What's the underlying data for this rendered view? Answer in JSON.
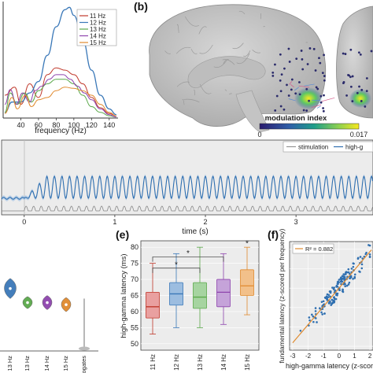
{
  "panels": {
    "b": "(b)",
    "e": "(e)",
    "f": "(f)"
  },
  "colors": {
    "c11": "#c0392b",
    "c12": "#3a78b8",
    "c13": "#5aa84a",
    "c14": "#8e44ad",
    "c15": "#e08a2e",
    "surr": "#888888",
    "stim": "#888888",
    "gamma": "#2f6fb0"
  },
  "chart_data": [
    {
      "type": "line",
      "xlabel": "frequency (Hz)",
      "ylabel": "",
      "xlim": [
        20,
        150
      ],
      "ylim": [
        0,
        1
      ],
      "xticks": [
        40,
        60,
        80,
        100,
        120,
        140
      ],
      "legend_position": "top-right",
      "series": [
        {
          "name": "11 Hz",
          "x": [
            22,
            33,
            40,
            50,
            60,
            70,
            80,
            90,
            100,
            110,
            120,
            130,
            140,
            148
          ],
          "y": [
            0.2,
            0.27,
            0.12,
            0.3,
            0.18,
            0.38,
            0.44,
            0.42,
            0.38,
            0.3,
            0.18,
            0.09,
            0.04,
            0.02
          ]
        },
        {
          "name": "12 Hz",
          "x": [
            22,
            30,
            40,
            50,
            60,
            70,
            80,
            90,
            95,
            100,
            110,
            120,
            130,
            140,
            148
          ],
          "y": [
            0.05,
            0.14,
            0.14,
            0.22,
            0.32,
            0.55,
            0.8,
            0.95,
            0.97,
            0.9,
            0.68,
            0.42,
            0.2,
            0.08,
            0.03
          ]
        },
        {
          "name": "13 Hz",
          "x": [
            22,
            28,
            36,
            44,
            52,
            60,
            70,
            80,
            90,
            100,
            110,
            120,
            130,
            140,
            148
          ],
          "y": [
            0.05,
            0.22,
            0.12,
            0.22,
            0.14,
            0.24,
            0.3,
            0.34,
            0.34,
            0.3,
            0.2,
            0.1,
            0.05,
            0.02,
            0.01
          ]
        },
        {
          "name": "14 Hz",
          "x": [
            22,
            28,
            35,
            42,
            50,
            56,
            64,
            72,
            80,
            88,
            96,
            104,
            112,
            120,
            130,
            140,
            148
          ],
          "y": [
            0.12,
            0.25,
            0.12,
            0.22,
            0.14,
            0.24,
            0.28,
            0.34,
            0.38,
            0.38,
            0.34,
            0.28,
            0.22,
            0.16,
            0.08,
            0.03,
            0.01
          ]
        },
        {
          "name": "15 Hz",
          "x": [
            22,
            30,
            36,
            45,
            52,
            60,
            70,
            80,
            90,
            100,
            110,
            120,
            130,
            140,
            148
          ],
          "y": [
            0.04,
            0.18,
            0.08,
            0.2,
            0.1,
            0.16,
            0.18,
            0.24,
            0.27,
            0.26,
            0.24,
            0.2,
            0.12,
            0.05,
            0.02
          ]
        }
      ]
    },
    {
      "type": "line",
      "xlabel": "time (s)",
      "xlim": [
        -0.25,
        3.85
      ],
      "xticks": [
        0,
        1,
        2,
        3
      ],
      "legend_position": "top-right",
      "series": [
        {
          "name": "stimulation",
          "frequency_hz": 12,
          "onset_s": 0
        },
        {
          "name": "high-g",
          "frequency_hz": 12,
          "onset_s": 0
        }
      ]
    },
    {
      "type": "violin",
      "categories": [
        "13 Hz",
        "13 Hz",
        "14 Hz",
        "15 Hz",
        "surrogates"
      ],
      "medians": [
        0.62,
        0.48,
        0.48,
        0.46,
        0.04
      ],
      "spread": [
        0.1,
        0.06,
        0.07,
        0.07,
        0.3
      ]
    },
    {
      "type": "box",
      "categories": [
        "11 Hz",
        "12 Hz",
        "13 Hz",
        "14 Hz",
        "15 Hz"
      ],
      "ylabel": "high-gamma latency (ms)",
      "ylim": [
        48,
        82
      ],
      "yticks": [
        50,
        55,
        60,
        65,
        70,
        75,
        80
      ],
      "boxes": [
        {
          "whisker_low": 53,
          "q1": 58,
          "median": 61.5,
          "q3": 66,
          "whisker_high": 75
        },
        {
          "whisker_low": 55,
          "q1": 62,
          "median": 65.5,
          "q3": 69,
          "whisker_high": 78
        },
        {
          "whisker_low": 55,
          "q1": 61,
          "median": 64.5,
          "q3": 69,
          "whisker_high": 80
        },
        {
          "whisker_low": 56,
          "q1": 61.5,
          "median": 66,
          "q3": 70,
          "whisker_high": 78
        },
        {
          "whisker_low": 59,
          "q1": 65,
          "median": 68,
          "q3": 73,
          "whisker_high": 80
        }
      ],
      "significance": [
        {
          "from": "11 Hz",
          "to": "13 Hz",
          "label": "*"
        },
        {
          "from": "11 Hz",
          "to": "14 Hz",
          "label": "*"
        },
        {
          "at": "15 Hz",
          "label": "*"
        }
      ]
    },
    {
      "type": "scatter",
      "xlabel": "high-gamma latency (z-score",
      "ylabel": "fundamental latency (z-scored per frequency)",
      "xlim": [
        -3.2,
        2.2
      ],
      "ylim": [
        -3.2,
        2.4
      ],
      "xticks": [
        -3,
        -2,
        -1,
        0,
        1,
        2
      ],
      "yticks": [
        -3,
        -2,
        -1,
        0,
        1,
        2
      ],
      "annotation": "R² = 0.882",
      "fit": {
        "slope": 0.94,
        "intercept": 0.0
      }
    }
  ],
  "brain": {
    "colorbar_title": "modulation index",
    "colorbar_min": "0",
    "colorbar_max": "0.017"
  }
}
